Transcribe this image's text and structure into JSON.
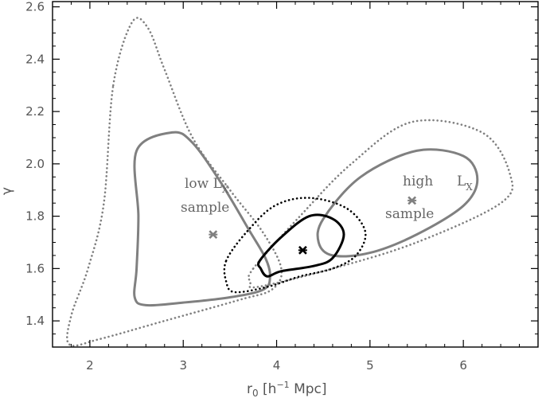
{
  "chart_data": {
    "type": "scatter",
    "title": "",
    "xlabel": "r",
    "xlabel_sub": "0",
    "xlabel_rest": " [h",
    "xlabel_sup": "−1",
    "xlabel_end": " Mpc]",
    "ylabel": "γ",
    "xlim": [
      1.6,
      6.8
    ],
    "ylim": [
      1.3,
      2.62
    ],
    "xticks": [
      "2",
      "3",
      "4",
      "5",
      "6"
    ],
    "yticks": [
      "1.4",
      "1.6",
      "1.8",
      "2.0",
      "2.2",
      "2.4",
      "2.6"
    ],
    "annotations": {
      "low_line1": "low L",
      "low_sub": "X",
      "low_line2": "sample",
      "high_line1": "high",
      "high_L": "L",
      "high_sub": "X",
      "high_line2": "sample"
    },
    "colors": {
      "black": "#000000",
      "grey": "#808080"
    },
    "best_fit_points": [
      {
        "series": "low_lx",
        "x": 3.32,
        "y": 1.73,
        "color": "#808080"
      },
      {
        "series": "full",
        "x": 4.28,
        "y": 1.67,
        "color": "#000000"
      },
      {
        "series": "high_lx",
        "x": 5.45,
        "y": 1.86,
        "color": "#808080"
      }
    ],
    "contours": [
      {
        "series": "low_lx",
        "level": "1-sigma",
        "style": "solid",
        "color": "#808080",
        "points": [
          [
            2.5,
            2.05
          ],
          [
            2.88,
            2.12
          ],
          [
            3.1,
            2.08
          ],
          [
            3.4,
            1.93
          ],
          [
            3.7,
            1.75
          ],
          [
            3.88,
            1.64
          ],
          [
            3.93,
            1.57
          ],
          [
            3.86,
            1.52
          ],
          [
            3.5,
            1.49
          ],
          [
            3.0,
            1.47
          ],
          [
            2.6,
            1.46
          ],
          [
            2.48,
            1.49
          ],
          [
            2.5,
            1.6
          ],
          [
            2.52,
            1.8
          ],
          [
            2.5,
            2.05
          ]
        ]
      },
      {
        "series": "low_lx",
        "level": "2-sigma",
        "style": "dotted",
        "color": "#808080",
        "points": [
          [
            2.25,
            2.3
          ],
          [
            2.45,
            2.54
          ],
          [
            2.62,
            2.52
          ],
          [
            2.8,
            2.36
          ],
          [
            3.1,
            2.1
          ],
          [
            3.5,
            1.9
          ],
          [
            3.85,
            1.74
          ],
          [
            4.05,
            1.6
          ],
          [
            3.95,
            1.52
          ],
          [
            3.6,
            1.48
          ],
          [
            2.8,
            1.4
          ],
          [
            2.1,
            1.33
          ],
          [
            1.78,
            1.31
          ],
          [
            1.8,
            1.42
          ],
          [
            1.98,
            1.6
          ],
          [
            2.15,
            1.85
          ],
          [
            2.25,
            2.3
          ]
        ]
      },
      {
        "series": "high_lx",
        "level": "1-sigma",
        "style": "solid",
        "color": "#808080",
        "points": [
          [
            4.5,
            1.79
          ],
          [
            4.9,
            1.95
          ],
          [
            5.5,
            2.05
          ],
          [
            6.0,
            2.03
          ],
          [
            6.15,
            1.94
          ],
          [
            6.0,
            1.84
          ],
          [
            5.5,
            1.73
          ],
          [
            5.0,
            1.66
          ],
          [
            4.6,
            1.65
          ],
          [
            4.45,
            1.7
          ],
          [
            4.5,
            1.79
          ]
        ]
      },
      {
        "series": "high_lx",
        "level": "2-sigma",
        "style": "dotted",
        "color": "#808080",
        "points": [
          [
            3.75,
            1.6
          ],
          [
            4.25,
            1.8
          ],
          [
            4.8,
            2.0
          ],
          [
            5.45,
            2.16
          ],
          [
            6.2,
            2.12
          ],
          [
            6.5,
            1.96
          ],
          [
            6.4,
            1.85
          ],
          [
            5.5,
            1.7
          ],
          [
            4.6,
            1.6
          ],
          [
            3.8,
            1.53
          ],
          [
            3.72,
            1.55
          ],
          [
            3.75,
            1.6
          ]
        ]
      },
      {
        "series": "full",
        "level": "1-sigma",
        "style": "solid",
        "color": "#000000",
        "points": [
          [
            3.82,
            1.63
          ],
          [
            4.05,
            1.72
          ],
          [
            4.35,
            1.8
          ],
          [
            4.6,
            1.79
          ],
          [
            4.72,
            1.73
          ],
          [
            4.6,
            1.64
          ],
          [
            4.4,
            1.61
          ],
          [
            4.05,
            1.59
          ],
          [
            3.9,
            1.57
          ],
          [
            3.83,
            1.6
          ],
          [
            3.82,
            1.63
          ]
        ]
      },
      {
        "series": "full",
        "level": "2-sigma",
        "style": "dotted",
        "color": "#000000",
        "points": [
          [
            3.46,
            1.63
          ],
          [
            3.68,
            1.74
          ],
          [
            3.98,
            1.84
          ],
          [
            4.35,
            1.87
          ],
          [
            4.75,
            1.83
          ],
          [
            4.95,
            1.74
          ],
          [
            4.85,
            1.65
          ],
          [
            4.6,
            1.6
          ],
          [
            4.25,
            1.57
          ],
          [
            3.9,
            1.53
          ],
          [
            3.55,
            1.51
          ],
          [
            3.46,
            1.55
          ],
          [
            3.46,
            1.63
          ]
        ]
      }
    ]
  }
}
